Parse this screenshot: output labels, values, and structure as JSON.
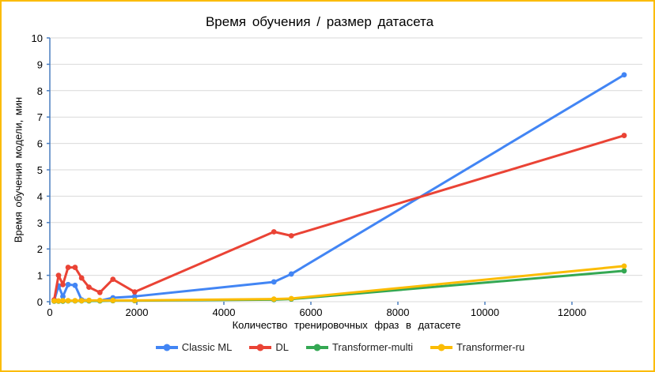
{
  "chart_data": {
    "type": "line",
    "title": "Время обучения / размер датасета",
    "xlabel": "Количество тренировочных фраз в датасете",
    "ylabel": "Время обучения модели, мин",
    "x_tick_labels": [
      "0",
      "2000",
      "4000",
      "6000",
      "8000",
      "10000",
      "12000"
    ],
    "x_ticks": [
      0,
      2000,
      4000,
      6000,
      8000,
      10000,
      12000
    ],
    "y_ticks": [
      0,
      1,
      2,
      3,
      4,
      5,
      6,
      7,
      8,
      9,
      10
    ],
    "xlim": [
      0,
      13620
    ],
    "ylim": [
      0,
      10
    ],
    "grid": "horizontal",
    "legend_position": "bottom",
    "marker": "circle",
    "x": [
      100,
      200,
      300,
      420,
      580,
      730,
      900,
      1150,
      1450,
      1950,
      5150,
      5550,
      13200
    ],
    "series": [
      {
        "name": "Classic ML",
        "color": "#4285F4",
        "values": [
          0.05,
          0.6,
          0.2,
          0.65,
          0.62,
          0.07,
          0.05,
          0.04,
          0.15,
          0.2,
          0.75,
          1.05,
          8.6
        ]
      },
      {
        "name": "DL",
        "color": "#EA4335",
        "values": [
          0.07,
          1.0,
          0.65,
          1.3,
          1.3,
          0.9,
          0.55,
          0.35,
          0.85,
          0.37,
          2.65,
          2.5,
          6.3
        ]
      },
      {
        "name": "Transformer-multi",
        "color": "#34A853",
        "values": [
          0.02,
          0.02,
          0.02,
          0.03,
          0.03,
          0.03,
          0.03,
          0.03,
          0.04,
          0.04,
          0.08,
          0.1,
          1.17
        ]
      },
      {
        "name": "Transformer-ru",
        "color": "#FBBC04",
        "values": [
          0.03,
          0.03,
          0.04,
          0.04,
          0.04,
          0.04,
          0.05,
          0.05,
          0.05,
          0.05,
          0.1,
          0.12,
          1.35
        ]
      }
    ],
    "colors": {
      "page_border": "#FBBC04",
      "axis_line": "#4A7EBF",
      "gridline": "#D9D9D9",
      "tick_label": "#000000",
      "title_text": "#000000"
    }
  }
}
